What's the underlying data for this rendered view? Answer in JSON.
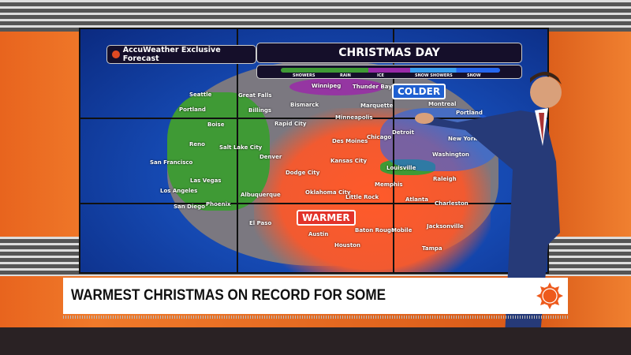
{
  "brand": {
    "label": "AccuWeather Exclusive Forecast"
  },
  "map": {
    "title": "CHRISTMAS DAY",
    "legend": [
      "SHOWERS",
      "RAIN",
      "ICE",
      "SNOW SHOWERS",
      "SNOW"
    ],
    "legend_colors": [
      "#3f9a35",
      "#2f8a2a",
      "#9a2aa8",
      "#3aa0f0",
      "#2566ee"
    ],
    "tags": {
      "colder": "COLDER",
      "warmer": "WARMER"
    },
    "cities": [
      "Seattle",
      "Great Falls",
      "Portland",
      "Billings",
      "Bismarck",
      "Winnipeg",
      "Thunder Bay",
      "Marquette",
      "Montreal",
      "Portland",
      "Rapid City",
      "Minneapolis",
      "Boise",
      "Reno",
      "Des Moines",
      "Chicago",
      "Detroit",
      "New York",
      "Salt Lake City",
      "Denver",
      "San Francisco",
      "Kansas City",
      "Louisville",
      "Washington",
      "Dodge City",
      "Las Vegas",
      "Los Angeles",
      "Memphis",
      "Raleigh",
      "Albuquerque",
      "Oklahoma City",
      "Little Rock",
      "San Diego",
      "Phoenix",
      "Atlanta",
      "Charleston",
      "El Paso",
      "Austin",
      "Baton Rouge",
      "Mobile",
      "Jacksonville",
      "Houston",
      "Tampa"
    ]
  },
  "headline": "WARMEST CHRISTMAS ON RECORD FOR SOME",
  "colors": {
    "warm": "#f25a30",
    "accent": "#e8641e"
  }
}
